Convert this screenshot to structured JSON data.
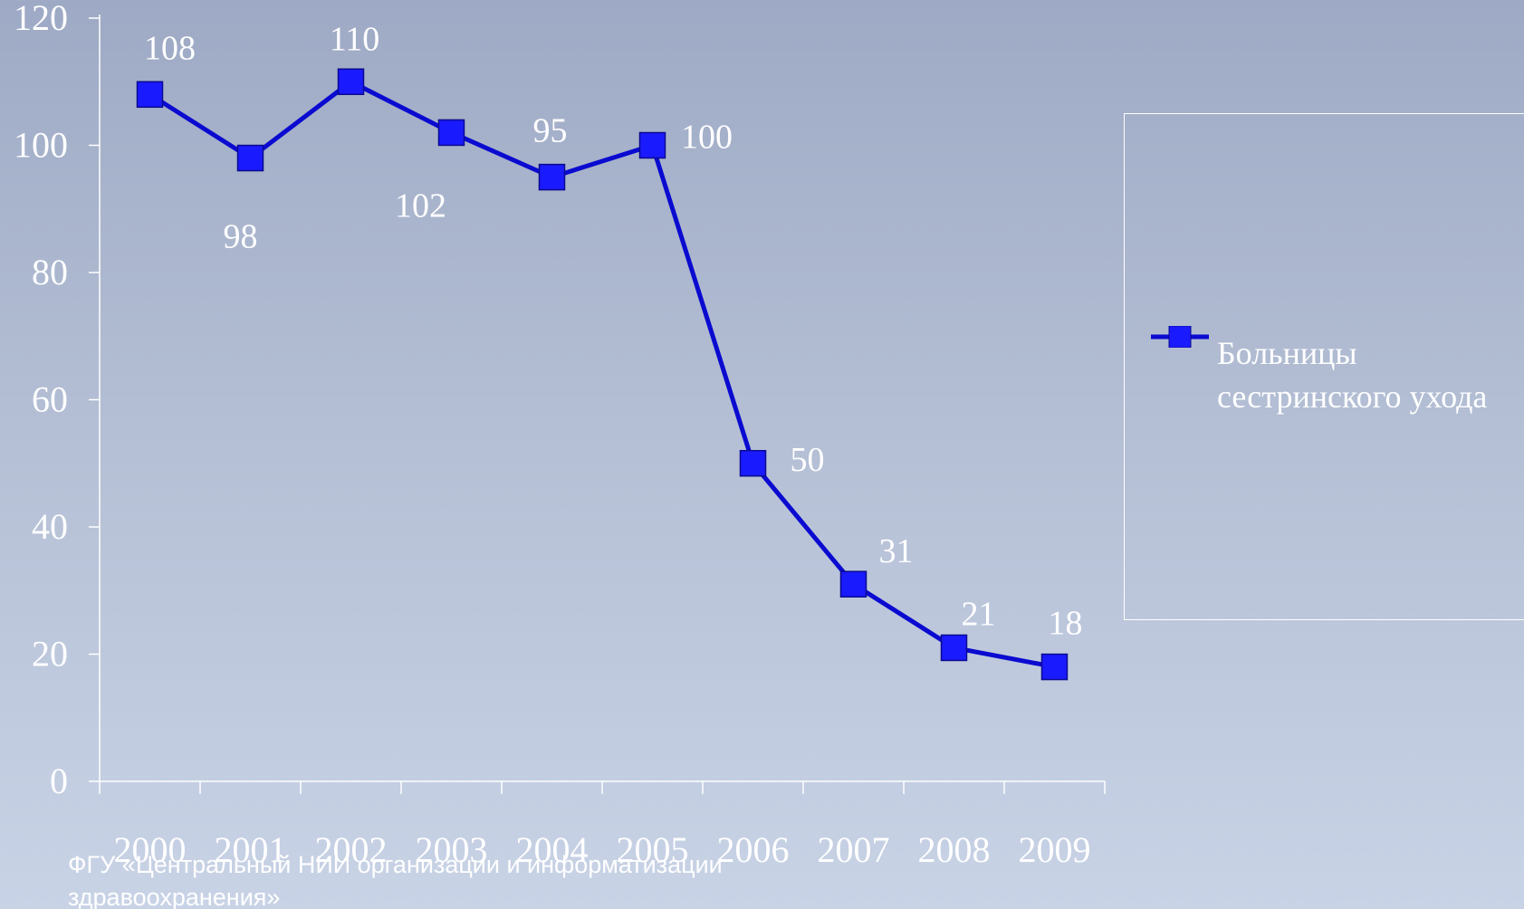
{
  "chart_data": {
    "type": "line",
    "categories": [
      "2000",
      "2001",
      "2002",
      "2003",
      "2004",
      "2005",
      "2006",
      "2007",
      "2008",
      "2009"
    ],
    "series": [
      {
        "name": "Больницы сестринского ухода",
        "values": [
          108,
          98,
          110,
          102,
          95,
          100,
          50,
          31,
          21,
          18
        ]
      }
    ],
    "data_labels": [
      "108",
      "98",
      "110",
      "102",
      "95",
      "100",
      "50",
      "31",
      "21",
      "18"
    ],
    "y_ticks": [
      "0",
      "20",
      "40",
      "60",
      "80",
      "100",
      "120"
    ],
    "ylim": [
      0,
      120
    ],
    "legend_position": "right",
    "line_color": "#0a0ad0",
    "marker_color": "#1a1aff",
    "grid": false
  },
  "footer": {
    "line1": "ФГУ «Центральный НИИ организации и информатизации",
    "line2": "здравоохранения»"
  }
}
